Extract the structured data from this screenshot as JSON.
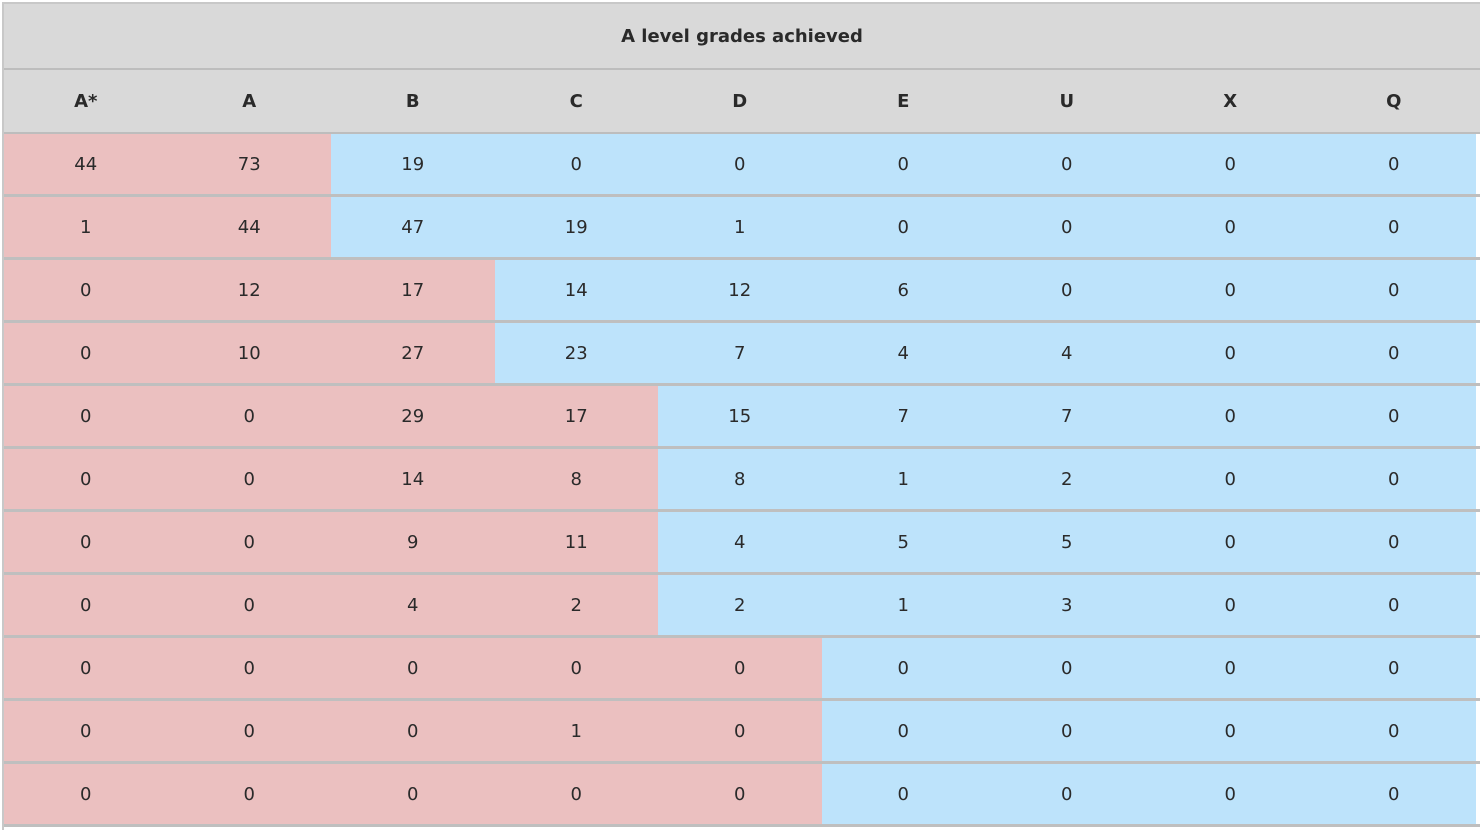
{
  "table": {
    "title": "A level grades achieved",
    "headers": [
      "A*",
      "A",
      "B",
      "C",
      "D",
      "E",
      "U",
      "X",
      "Q"
    ],
    "rows": [
      {
        "values": [
          "44",
          "73",
          "19",
          "0",
          "0",
          "0",
          "0",
          "0",
          "0"
        ],
        "split": 2
      },
      {
        "values": [
          "1",
          "44",
          "47",
          "19",
          "1",
          "0",
          "0",
          "0",
          "0"
        ],
        "split": 2
      },
      {
        "values": [
          "0",
          "12",
          "17",
          "14",
          "12",
          "6",
          "0",
          "0",
          "0"
        ],
        "split": 3
      },
      {
        "values": [
          "0",
          "10",
          "27",
          "23",
          "7",
          "4",
          "4",
          "0",
          "0"
        ],
        "split": 3
      },
      {
        "values": [
          "0",
          "0",
          "29",
          "17",
          "15",
          "7",
          "7",
          "0",
          "0"
        ],
        "split": 4
      },
      {
        "values": [
          "0",
          "0",
          "14",
          "8",
          "8",
          "1",
          "2",
          "0",
          "0"
        ],
        "split": 4
      },
      {
        "values": [
          "0",
          "0",
          "9",
          "11",
          "4",
          "5",
          "5",
          "0",
          "0"
        ],
        "split": 4
      },
      {
        "values": [
          "0",
          "0",
          "4",
          "2",
          "2",
          "1",
          "3",
          "0",
          "0"
        ],
        "split": 4
      },
      {
        "values": [
          "0",
          "0",
          "0",
          "0",
          "0",
          "0",
          "0",
          "0",
          "0"
        ],
        "split": 5
      },
      {
        "values": [
          "0",
          "0",
          "0",
          "1",
          "0",
          "0",
          "0",
          "0",
          "0"
        ],
        "split": 5
      },
      {
        "values": [
          "0",
          "0",
          "0",
          "0",
          "0",
          "0",
          "0",
          "0",
          "0"
        ],
        "split": 5
      }
    ]
  },
  "colors": {
    "header_bg": "#d9d9d9",
    "at_or_above": "#ebc0c0",
    "below": "#bde3fb"
  }
}
